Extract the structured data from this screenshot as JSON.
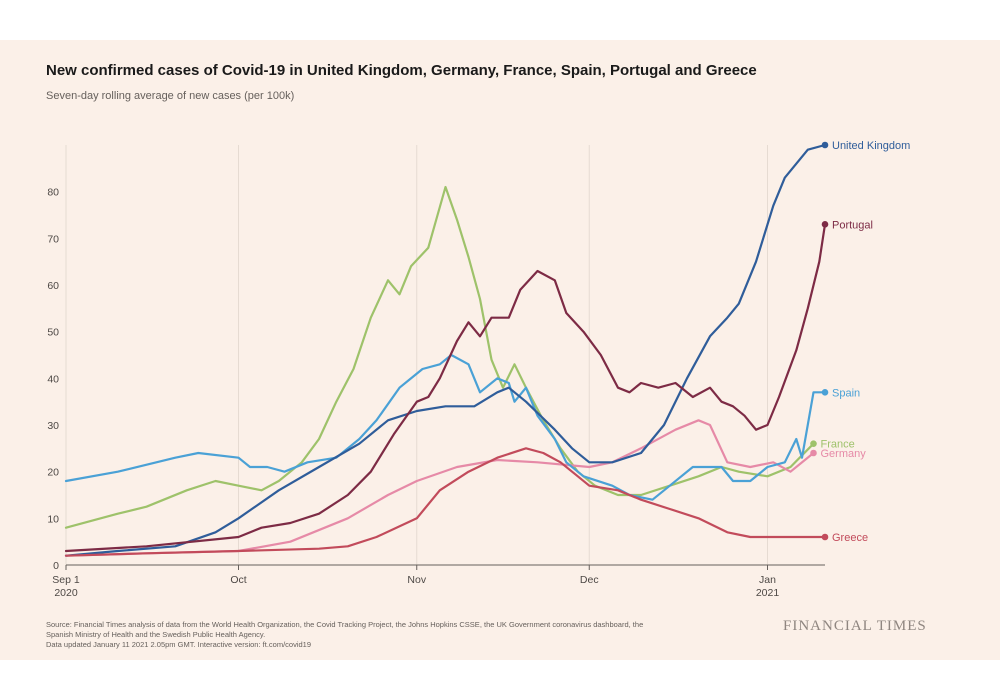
{
  "title": "New confirmed cases of Covid-19 in United Kingdom, Germany, France, Spain, Portugal and Greece",
  "subtitle": "Seven-day rolling average of new cases (per 100k)",
  "source_lines": [
    "Source: Financial Times analysis of data from the World Health Organization, the Covid Tracking Project, the Johns Hopkins CSSE, the UK Government coronavirus dashboard, the",
    "Spanish Ministry of Health and the Swedish Public Health Agency.",
    "Data updated January 11 2021 2.05pm GMT. Interactive version: ft.com/covid19"
  ],
  "brand": "FINANCIAL TIMES",
  "chart_data": {
    "type": "line",
    "x_start": "2020-09-01",
    "x_end": "2021-01-11",
    "ylim": [
      0,
      90
    ],
    "yticks": [
      0,
      10,
      20,
      30,
      40,
      50,
      60,
      70,
      80
    ],
    "xticks": [
      {
        "date": "2020-09-01",
        "label": "Sep 1",
        "sublabel": "2020"
      },
      {
        "date": "2020-10-01",
        "label": "Oct",
        "sublabel": ""
      },
      {
        "date": "2020-11-01",
        "label": "Nov",
        "sublabel": ""
      },
      {
        "date": "2020-12-01",
        "label": "Dec",
        "sublabel": ""
      },
      {
        "date": "2021-01-01",
        "label": "Jan",
        "sublabel": "2021"
      }
    ],
    "grid": "vertical",
    "legend": "direct labels at line ends",
    "series": [
      {
        "name": "France",
        "color": "#9ec26a",
        "points": [
          [
            "2020-09-01",
            8
          ],
          [
            "2020-09-10",
            11
          ],
          [
            "2020-09-15",
            12.5
          ],
          [
            "2020-09-22",
            16
          ],
          [
            "2020-09-27",
            18
          ],
          [
            "2020-10-01",
            17
          ],
          [
            "2020-10-05",
            16
          ],
          [
            "2020-10-08",
            18
          ],
          [
            "2020-10-12",
            22
          ],
          [
            "2020-10-15",
            27
          ],
          [
            "2020-10-18",
            35
          ],
          [
            "2020-10-21",
            42
          ],
          [
            "2020-10-24",
            53
          ],
          [
            "2020-10-27",
            61
          ],
          [
            "2020-10-29",
            58
          ],
          [
            "2020-10-31",
            64
          ],
          [
            "2020-11-03",
            68
          ],
          [
            "2020-11-06",
            81
          ],
          [
            "2020-11-08",
            74
          ],
          [
            "2020-11-10",
            66
          ],
          [
            "2020-11-12",
            57
          ],
          [
            "2020-11-14",
            44
          ],
          [
            "2020-11-16",
            38
          ],
          [
            "2020-11-18",
            43
          ],
          [
            "2020-11-20",
            38
          ],
          [
            "2020-11-23",
            31
          ],
          [
            "2020-11-26",
            25
          ],
          [
            "2020-11-29",
            20
          ],
          [
            "2020-12-02",
            17
          ],
          [
            "2020-12-06",
            15
          ],
          [
            "2020-12-10",
            15
          ],
          [
            "2020-12-15",
            17
          ],
          [
            "2020-12-20",
            19
          ],
          [
            "2020-12-24",
            21
          ],
          [
            "2020-12-27",
            20
          ],
          [
            "2021-01-01",
            19
          ],
          [
            "2021-01-05",
            21
          ],
          [
            "2021-01-09",
            26
          ]
        ]
      },
      {
        "name": "Germany",
        "color": "#e68aa7",
        "points": [
          [
            "2020-09-01",
            2
          ],
          [
            "2020-09-15",
            2.5
          ],
          [
            "2020-10-01",
            3
          ],
          [
            "2020-10-10",
            5
          ],
          [
            "2020-10-20",
            10
          ],
          [
            "2020-10-27",
            15
          ],
          [
            "2020-11-01",
            18
          ],
          [
            "2020-11-08",
            21
          ],
          [
            "2020-11-15",
            22.5
          ],
          [
            "2020-11-22",
            22
          ],
          [
            "2020-12-01",
            21
          ],
          [
            "2020-12-05",
            22
          ],
          [
            "2020-12-10",
            25
          ],
          [
            "2020-12-16",
            29
          ],
          [
            "2020-12-20",
            31
          ],
          [
            "2020-12-22",
            30
          ],
          [
            "2020-12-25",
            22
          ],
          [
            "2020-12-29",
            21
          ],
          [
            "2021-01-02",
            22
          ],
          [
            "2021-01-05",
            20
          ],
          [
            "2021-01-09",
            24
          ]
        ]
      },
      {
        "name": "Spain",
        "color": "#4aa1d6",
        "points": [
          [
            "2020-09-01",
            18
          ],
          [
            "2020-09-10",
            20
          ],
          [
            "2020-09-20",
            23
          ],
          [
            "2020-09-24",
            24
          ],
          [
            "2020-10-01",
            23
          ],
          [
            "2020-10-03",
            21
          ],
          [
            "2020-10-06",
            21
          ],
          [
            "2020-10-09",
            20
          ],
          [
            "2020-10-13",
            22
          ],
          [
            "2020-10-18",
            23
          ],
          [
            "2020-10-22",
            27
          ],
          [
            "2020-10-25",
            31
          ],
          [
            "2020-10-29",
            38
          ],
          [
            "2020-11-02",
            42
          ],
          [
            "2020-11-05",
            43
          ],
          [
            "2020-11-07",
            45
          ],
          [
            "2020-11-10",
            43
          ],
          [
            "2020-11-12",
            37
          ],
          [
            "2020-11-15",
            40
          ],
          [
            "2020-11-17",
            39
          ],
          [
            "2020-11-18",
            35
          ],
          [
            "2020-11-20",
            38
          ],
          [
            "2020-11-22",
            32
          ],
          [
            "2020-11-25",
            27
          ],
          [
            "2020-11-27",
            22
          ],
          [
            "2020-11-30",
            19
          ],
          [
            "2020-12-05",
            17
          ],
          [
            "2020-12-08",
            15
          ],
          [
            "2020-12-12",
            14
          ],
          [
            "2020-12-15",
            17
          ],
          [
            "2020-12-19",
            21
          ],
          [
            "2020-12-24",
            21
          ],
          [
            "2020-12-26",
            18
          ],
          [
            "2020-12-29",
            18
          ],
          [
            "2021-01-01",
            21
          ],
          [
            "2021-01-04",
            22
          ],
          [
            "2021-01-06",
            27
          ],
          [
            "2021-01-07",
            23
          ],
          [
            "2021-01-09",
            37
          ],
          [
            "2021-01-11",
            37
          ]
        ]
      },
      {
        "name": "United Kingdom",
        "color": "#2f5d9a",
        "points": [
          [
            "2020-09-01",
            2
          ],
          [
            "2020-09-10",
            3
          ],
          [
            "2020-09-20",
            4
          ],
          [
            "2020-09-27",
            7
          ],
          [
            "2020-10-01",
            10
          ],
          [
            "2020-10-08",
            16
          ],
          [
            "2020-10-15",
            21
          ],
          [
            "2020-10-22",
            26
          ],
          [
            "2020-10-27",
            31
          ],
          [
            "2020-11-01",
            33
          ],
          [
            "2020-11-06",
            34
          ],
          [
            "2020-11-11",
            34
          ],
          [
            "2020-11-15",
            37
          ],
          [
            "2020-11-17",
            38
          ],
          [
            "2020-11-20",
            35
          ],
          [
            "2020-11-25",
            29
          ],
          [
            "2020-11-28",
            25
          ],
          [
            "2020-12-01",
            22
          ],
          [
            "2020-12-05",
            22
          ],
          [
            "2020-12-10",
            24
          ],
          [
            "2020-12-14",
            30
          ],
          [
            "2020-12-18",
            40
          ],
          [
            "2020-12-22",
            49
          ],
          [
            "2020-12-25",
            53
          ],
          [
            "2020-12-27",
            56
          ],
          [
            "2020-12-30",
            65
          ],
          [
            "2021-01-02",
            77
          ],
          [
            "2021-01-04",
            83
          ],
          [
            "2021-01-06",
            86
          ],
          [
            "2021-01-08",
            89
          ],
          [
            "2021-01-11",
            90
          ]
        ]
      },
      {
        "name": "Portugal",
        "color": "#7d2b45",
        "points": [
          [
            "2020-09-01",
            3
          ],
          [
            "2020-09-15",
            4
          ],
          [
            "2020-10-01",
            6
          ],
          [
            "2020-10-05",
            8
          ],
          [
            "2020-10-10",
            9
          ],
          [
            "2020-10-15",
            11
          ],
          [
            "2020-10-20",
            15
          ],
          [
            "2020-10-24",
            20
          ],
          [
            "2020-10-28",
            28
          ],
          [
            "2020-11-01",
            35
          ],
          [
            "2020-11-03",
            36
          ],
          [
            "2020-11-05",
            40
          ],
          [
            "2020-11-08",
            48
          ],
          [
            "2020-11-10",
            52
          ],
          [
            "2020-11-12",
            49
          ],
          [
            "2020-11-14",
            53
          ],
          [
            "2020-11-17",
            53
          ],
          [
            "2020-11-19",
            59
          ],
          [
            "2020-11-22",
            63
          ],
          [
            "2020-11-25",
            61
          ],
          [
            "2020-11-27",
            54
          ],
          [
            "2020-11-30",
            50
          ],
          [
            "2020-12-03",
            45
          ],
          [
            "2020-12-06",
            38
          ],
          [
            "2020-12-08",
            37
          ],
          [
            "2020-12-10",
            39
          ],
          [
            "2020-12-13",
            38
          ],
          [
            "2020-12-16",
            39
          ],
          [
            "2020-12-19",
            36
          ],
          [
            "2020-12-22",
            38
          ],
          [
            "2020-12-24",
            35
          ],
          [
            "2020-12-26",
            34
          ],
          [
            "2020-12-28",
            32
          ],
          [
            "2020-12-30",
            29
          ],
          [
            "2021-01-01",
            30
          ],
          [
            "2021-01-03",
            36
          ],
          [
            "2021-01-06",
            46
          ],
          [
            "2021-01-08",
            55
          ],
          [
            "2021-01-10",
            65
          ],
          [
            "2021-01-11",
            73
          ]
        ]
      },
      {
        "name": "Greece",
        "color": "#c24b5b",
        "points": [
          [
            "2020-09-01",
            2
          ],
          [
            "2020-09-15",
            2.5
          ],
          [
            "2020-10-01",
            3
          ],
          [
            "2020-10-15",
            3.5
          ],
          [
            "2020-10-20",
            4
          ],
          [
            "2020-10-25",
            6
          ],
          [
            "2020-11-01",
            10
          ],
          [
            "2020-11-05",
            16
          ],
          [
            "2020-11-10",
            20
          ],
          [
            "2020-11-15",
            23
          ],
          [
            "2020-11-20",
            25
          ],
          [
            "2020-11-23",
            24
          ],
          [
            "2020-11-26",
            22
          ],
          [
            "2020-11-29",
            19
          ],
          [
            "2020-12-01",
            17
          ],
          [
            "2020-12-06",
            16
          ],
          [
            "2020-12-10",
            14
          ],
          [
            "2020-12-15",
            12
          ],
          [
            "2020-12-20",
            10
          ],
          [
            "2020-12-25",
            7
          ],
          [
            "2020-12-29",
            6
          ],
          [
            "2021-01-01",
            6
          ],
          [
            "2021-01-05",
            6
          ],
          [
            "2021-01-11",
            6
          ]
        ]
      }
    ]
  }
}
